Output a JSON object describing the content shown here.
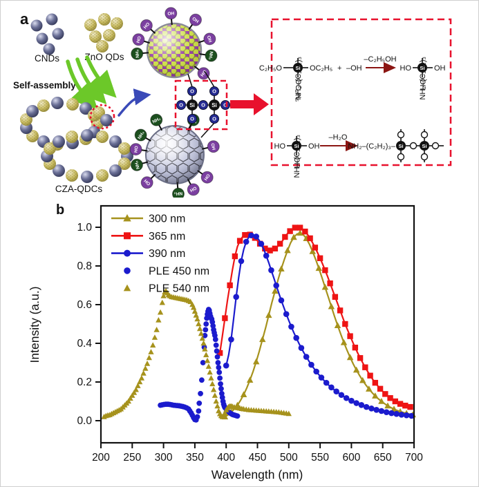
{
  "figure": {
    "panel_a_label": "a",
    "panel_b_label": "b"
  },
  "panel_a": {
    "cnds_label": "CNDs",
    "zno_label": "ZnO QDs",
    "self_assembly_label": "Self-assembly",
    "cluster_label": "CZA-QDCs",
    "ligand_labels": {
      "oh": "OH",
      "ho": "HO",
      "nh2": "NH₂"
    },
    "linker": {
      "si": "Si",
      "o": "O"
    },
    "colors": {
      "box_red": "#e8112d",
      "green_arrow": "#6cc829",
      "blue_arrow": "#3a4ab8",
      "purple_ligand": "#7b3fa0",
      "green_ligand": "#1c4f1e",
      "o_atom": "#242a92",
      "si_atom": "#111111"
    },
    "small_cnds": [
      [
        52,
        36
      ],
      [
        74,
        27
      ],
      [
        60,
        55
      ],
      [
        83,
        48
      ],
      [
        70,
        70
      ]
    ],
    "small_zno": [
      [
        130,
        35
      ],
      [
        150,
        27
      ],
      [
        168,
        33
      ],
      [
        137,
        52
      ],
      [
        157,
        50
      ],
      [
        147,
        66
      ]
    ],
    "cluster_spheres": [
      [
        140,
        178,
        "z"
      ],
      [
        135,
        190,
        "c"
      ],
      [
        123,
        200,
        "z"
      ],
      [
        104,
        206,
        "c"
      ],
      [
        82,
        208,
        "z"
      ],
      [
        62,
        204,
        "c"
      ],
      [
        46,
        196,
        "z"
      ],
      [
        37,
        184,
        "c"
      ],
      [
        37,
        172,
        "z"
      ],
      [
        46,
        160,
        "c"
      ],
      [
        62,
        152,
        "z"
      ],
      [
        82,
        148,
        "c"
      ],
      [
        104,
        150,
        "z"
      ],
      [
        123,
        156,
        "c"
      ],
      [
        135,
        166,
        "z"
      ],
      [
        183,
        225,
        "c"
      ],
      [
        179,
        236,
        "z"
      ],
      [
        166,
        246,
        "c"
      ],
      [
        147,
        253,
        "z"
      ],
      [
        125,
        255,
        "c"
      ],
      [
        103,
        253,
        "z"
      ],
      [
        84,
        246,
        "c"
      ],
      [
        71,
        236,
        "z"
      ],
      [
        67,
        225,
        "c"
      ],
      [
        71,
        214,
        "z"
      ],
      [
        84,
        204,
        "c"
      ],
      [
        103,
        197,
        "z"
      ],
      [
        125,
        195,
        "c"
      ],
      [
        147,
        197,
        "z"
      ],
      [
        166,
        204,
        "c"
      ],
      [
        179,
        214,
        "z"
      ],
      [
        142,
        162,
        "z"
      ],
      [
        153,
        173,
        "c"
      ]
    ],
    "top_sphere_ligands": [
      [
        138,
        "ho"
      ],
      [
        163,
        "ho"
      ],
      [
        95,
        "oh"
      ],
      [
        55,
        "oh"
      ],
      [
        18,
        "oh"
      ],
      [
        -8,
        "nh2"
      ],
      [
        -38,
        "oh"
      ],
      [
        185,
        "nh2"
      ]
    ],
    "bottom_sphere_ligands": [
      [
        150,
        "nh2"
      ],
      [
        172,
        "ho"
      ],
      [
        195,
        "nh2"
      ],
      [
        118,
        "nh2"
      ],
      [
        62,
        "nh2"
      ],
      [
        12,
        "oh"
      ],
      [
        -35,
        "oh"
      ],
      [
        225,
        "oh"
      ],
      [
        -85,
        "nh2"
      ],
      [
        -62,
        "oh"
      ]
    ]
  },
  "chemistry": {
    "si": "Si",
    "r1": {
      "chain_top": "NH₂–(C₂H₂)₃",
      "left": "C₂H₅O",
      "right": "OC₂H₅",
      "plus": "+",
      "reactant2": "–OH",
      "bottom": "OC₂H₅",
      "arrow_label": "–C₂H₅OH",
      "p_chain_top": "NH₂–(C₂H₂)₃",
      "p_left": "HO",
      "p_right": "OH",
      "p_bottom": "OH"
    },
    "r2": {
      "chain_top": "NH₂–(C₂H₂)₃",
      "left": "HO",
      "right": "OH",
      "bottom": "OH",
      "arrow_label": "–H₂O",
      "p_prefix": "NH₂–(C₂H₂)₃–"
    }
  },
  "chart_data": {
    "type": "line",
    "title": "",
    "xlabel": "Wavelength (nm)",
    "ylabel": "Intensity (a.u.)",
    "xlim": [
      200,
      700
    ],
    "ylim": [
      0,
      1.05
    ],
    "x_ticks": [
      200,
      250,
      300,
      350,
      400,
      450,
      500,
      550,
      600,
      650,
      700
    ],
    "y_ticks": [
      0.0,
      0.2,
      0.4,
      0.6,
      0.8,
      1.0
    ],
    "grid": false,
    "legend_position": "top-left",
    "series": [
      {
        "name": "300 nm",
        "type": "line",
        "marker": "triangle",
        "color": "#a6921c",
        "mark_every": 2,
        "xy": [
          398,
          0.02,
          403,
          0.03,
          408,
          0.045,
          413,
          0.06,
          418,
          0.08,
          423,
          0.105,
          428,
          0.135,
          433,
          0.17,
          438,
          0.21,
          443,
          0.255,
          448,
          0.305,
          453,
          0.36,
          458,
          0.42,
          463,
          0.48,
          468,
          0.545,
          473,
          0.61,
          478,
          0.67,
          483,
          0.73,
          488,
          0.785,
          493,
          0.835,
          498,
          0.88,
          503,
          0.92,
          508,
          0.948,
          513,
          0.965,
          518,
          0.97,
          523,
          0.962,
          528,
          0.942,
          533,
          0.912,
          538,
          0.875,
          543,
          0.833,
          548,
          0.788,
          553,
          0.74,
          558,
          0.69,
          563,
          0.64,
          568,
          0.59,
          573,
          0.54,
          578,
          0.492,
          583,
          0.447,
          588,
          0.404,
          593,
          0.364,
          598,
          0.327,
          603,
          0.293,
          608,
          0.262,
          613,
          0.234,
          618,
          0.208,
          623,
          0.185,
          628,
          0.164,
          633,
          0.145,
          638,
          0.128,
          643,
          0.113,
          648,
          0.1,
          653,
          0.088,
          658,
          0.077,
          663,
          0.068,
          668,
          0.06,
          673,
          0.053,
          678,
          0.047,
          683,
          0.042,
          688,
          0.038,
          693,
          0.034,
          698,
          0.031
        ]
      },
      {
        "name": "365 nm",
        "type": "line",
        "marker": "square",
        "color": "#ee1414",
        "mark_every": 2,
        "xy": [
          390,
          0.35,
          394,
          0.44,
          398,
          0.53,
          402,
          0.62,
          406,
          0.7,
          410,
          0.78,
          414,
          0.85,
          418,
          0.9,
          422,
          0.93,
          426,
          0.95,
          430,
          0.96,
          434,
          0.965,
          438,
          0.962,
          442,
          0.955,
          446,
          0.945,
          450,
          0.93,
          454,
          0.915,
          458,
          0.9,
          462,
          0.89,
          466,
          0.884,
          470,
          0.88,
          474,
          0.882,
          478,
          0.89,
          482,
          0.9,
          486,
          0.915,
          490,
          0.93,
          494,
          0.95,
          498,
          0.968,
          502,
          0.98,
          506,
          0.99,
          510,
          0.998,
          514,
          1.0,
          518,
          0.998,
          522,
          0.99,
          526,
          0.978,
          530,
          0.962,
          534,
          0.943,
          538,
          0.92,
          542,
          0.895,
          546,
          0.868,
          550,
          0.84,
          554,
          0.81,
          558,
          0.778,
          562,
          0.745,
          566,
          0.71,
          570,
          0.675,
          574,
          0.64,
          578,
          0.605,
          582,
          0.57,
          586,
          0.535,
          590,
          0.5,
          594,
          0.468,
          598,
          0.437,
          602,
          0.407,
          606,
          0.378,
          610,
          0.35,
          614,
          0.324,
          618,
          0.3,
          622,
          0.276,
          626,
          0.254,
          630,
          0.233,
          634,
          0.214,
          638,
          0.196,
          642,
          0.18,
          646,
          0.165,
          650,
          0.151,
          654,
          0.138,
          658,
          0.127,
          662,
          0.117,
          666,
          0.108,
          670,
          0.1,
          674,
          0.093,
          678,
          0.087,
          682,
          0.082,
          686,
          0.078,
          690,
          0.074,
          694,
          0.071,
          698,
          0.068
        ]
      },
      {
        "name": "390 nm",
        "type": "line",
        "marker": "circle",
        "color": "#1b1bcd",
        "mark_every": 2,
        "xy": [
          400,
          0.285,
          404,
          0.34,
          408,
          0.42,
          412,
          0.53,
          416,
          0.64,
          420,
          0.74,
          424,
          0.825,
          428,
          0.885,
          432,
          0.925,
          436,
          0.948,
          440,
          0.958,
          444,
          0.96,
          448,
          0.952,
          452,
          0.936,
          456,
          0.914,
          460,
          0.886,
          464,
          0.853,
          468,
          0.817,
          472,
          0.778,
          476,
          0.739,
          480,
          0.699,
          484,
          0.66,
          488,
          0.622,
          492,
          0.586,
          496,
          0.551,
          500,
          0.518,
          504,
          0.486,
          508,
          0.456,
          512,
          0.428,
          516,
          0.401,
          520,
          0.376,
          524,
          0.352,
          528,
          0.33,
          532,
          0.309,
          536,
          0.289,
          540,
          0.271,
          544,
          0.254,
          548,
          0.238,
          552,
          0.223,
          556,
          0.209,
          560,
          0.196,
          564,
          0.183,
          568,
          0.172,
          572,
          0.161,
          576,
          0.151,
          580,
          0.142,
          584,
          0.133,
          588,
          0.125,
          592,
          0.117,
          596,
          0.11,
          600,
          0.103,
          604,
          0.097,
          608,
          0.091,
          612,
          0.086,
          616,
          0.081,
          620,
          0.076,
          624,
          0.071,
          628,
          0.067,
          632,
          0.063,
          636,
          0.059,
          640,
          0.056,
          644,
          0.053,
          648,
          0.05,
          652,
          0.047,
          656,
          0.044,
          660,
          0.042,
          664,
          0.039,
          668,
          0.037,
          672,
          0.035,
          676,
          0.033,
          680,
          0.031,
          684,
          0.03,
          688,
          0.028,
          692,
          0.027,
          696,
          0.025,
          700,
          0.024
        ]
      },
      {
        "name": "PLE  450 nm",
        "type": "scatter",
        "marker": "circle",
        "color": "#1b1bcd",
        "xy": [
          295,
          0.08,
          298,
          0.082,
          301,
          0.084,
          304,
          0.085,
          307,
          0.085,
          310,
          0.084,
          313,
          0.082,
          316,
          0.08,
          319,
          0.079,
          322,
          0.078,
          325,
          0.077,
          328,
          0.075,
          331,
          0.073,
          334,
          0.07,
          337,
          0.066,
          340,
          0.06,
          342,
          0.05,
          344,
          0.04,
          346,
          0.028,
          348,
          0.015,
          350,
          0.006,
          352,
          0.004,
          354,
          0.02,
          356,
          0.05,
          357,
          0.09,
          359,
          0.14,
          361,
          0.21,
          363,
          0.3,
          365,
          0.38,
          366,
          0.44,
          367,
          0.47,
          368,
          0.5,
          369,
          0.53,
          370,
          0.55,
          371,
          0.565,
          372,
          0.575,
          373,
          0.57,
          374,
          0.555,
          375,
          0.54,
          376,
          0.53,
          377,
          0.525,
          378,
          0.51,
          379,
          0.49,
          380,
          0.47,
          381,
          0.455,
          382,
          0.44,
          383,
          0.42,
          384,
          0.39,
          385,
          0.36,
          386,
          0.33,
          387,
          0.3,
          388,
          0.275,
          389,
          0.25,
          390,
          0.22,
          391,
          0.19,
          392,
          0.165,
          393,
          0.14,
          394,
          0.12,
          395,
          0.1,
          396,
          0.085,
          397,
          0.075,
          398,
          0.068,
          400,
          0.06,
          402,
          0.052,
          404,
          0.046,
          406,
          0.04,
          408,
          0.036,
          410,
          0.032,
          412,
          0.03,
          414,
          0.028,
          416,
          0.026,
          418,
          0.024
        ]
      },
      {
        "name": "PLE  540 nm",
        "type": "scatter",
        "marker": "triangle",
        "color": "#a6921c",
        "xy": [
          205,
          0.02,
          208,
          0.025,
          211,
          0.028,
          214,
          0.03,
          217,
          0.035,
          220,
          0.04,
          223,
          0.045,
          226,
          0.05,
          229,
          0.055,
          232,
          0.06,
          235,
          0.07,
          238,
          0.08,
          241,
          0.09,
          244,
          0.1,
          247,
          0.115,
          250,
          0.13,
          253,
          0.145,
          256,
          0.16,
          259,
          0.18,
          262,
          0.2,
          265,
          0.22,
          268,
          0.245,
          271,
          0.27,
          274,
          0.295,
          277,
          0.325,
          280,
          0.355,
          283,
          0.39,
          286,
          0.43,
          289,
          0.47,
          292,
          0.52,
          295,
          0.56,
          298,
          0.61,
          300,
          0.645,
          302,
          0.665,
          304,
          0.67,
          306,
          0.66,
          308,
          0.65,
          310,
          0.645,
          313,
          0.64,
          316,
          0.638,
          319,
          0.636,
          322,
          0.634,
          325,
          0.632,
          328,
          0.63,
          331,
          0.628,
          334,
          0.626,
          337,
          0.624,
          340,
          0.62,
          343,
          0.615,
          346,
          0.6,
          348,
          0.585,
          350,
          0.565,
          352,
          0.545,
          354,
          0.525,
          356,
          0.5,
          358,
          0.475,
          360,
          0.45,
          362,
          0.425,
          364,
          0.4,
          366,
          0.37,
          368,
          0.34,
          370,
          0.31,
          372,
          0.28,
          374,
          0.25,
          376,
          0.22,
          378,
          0.19,
          380,
          0.16,
          382,
          0.13,
          384,
          0.1,
          386,
          0.075,
          388,
          0.05,
          390,
          0.035,
          392,
          0.025,
          394,
          0.02,
          396,
          0.025,
          398,
          0.04,
          400,
          0.055,
          402,
          0.065,
          404,
          0.072,
          406,
          0.075,
          408,
          0.075,
          410,
          0.073,
          413,
          0.07,
          416,
          0.068,
          419,
          0.066,
          422,
          0.064,
          425,
          0.062,
          428,
          0.06,
          432,
          0.058,
          436,
          0.056,
          440,
          0.055,
          444,
          0.054,
          448,
          0.053,
          452,
          0.052,
          456,
          0.051,
          460,
          0.05,
          464,
          0.049,
          468,
          0.048,
          472,
          0.047,
          476,
          0.046,
          480,
          0.045,
          484,
          0.044,
          488,
          0.042,
          492,
          0.04,
          496,
          0.038,
          500,
          0.036
        ]
      }
    ]
  }
}
